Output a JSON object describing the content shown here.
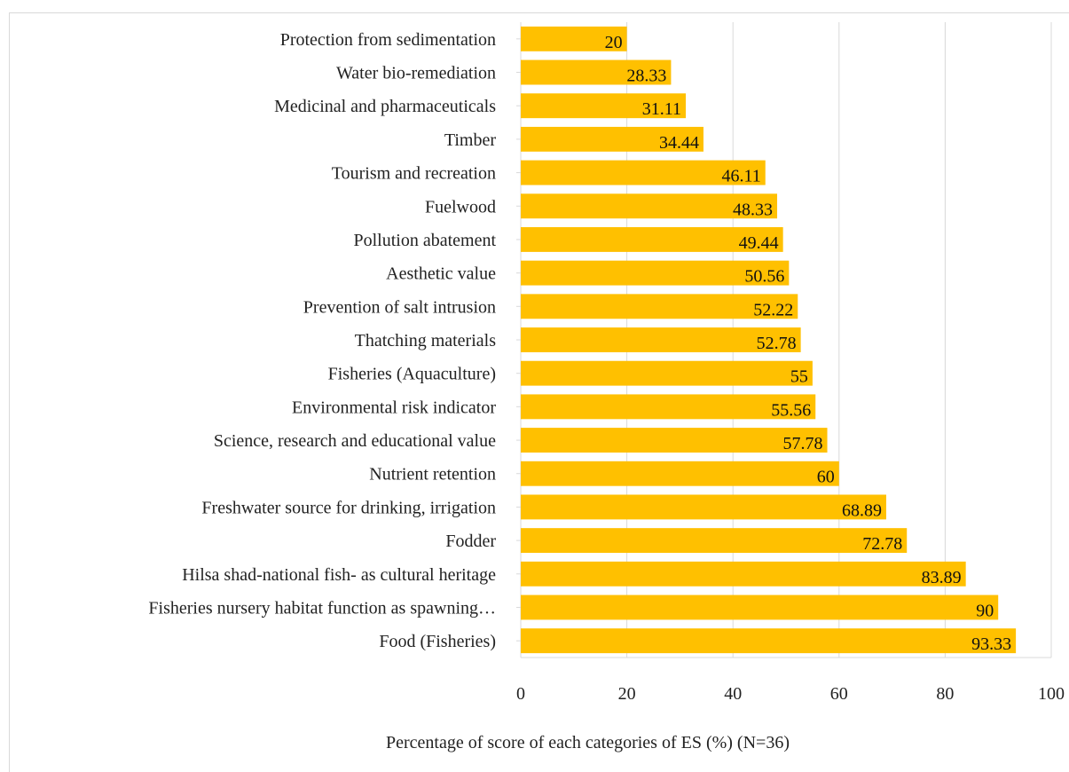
{
  "chart_data": {
    "type": "bar",
    "orientation": "horizontal",
    "title": "",
    "xlabel": "Percentage of score of each categories of ES (%) (N=36)",
    "ylabel": "",
    "xlim": [
      0,
      100
    ],
    "xticks": [
      "0",
      "20",
      "40",
      "60",
      "80",
      "100"
    ],
    "grid": "vertical",
    "legend": "none",
    "bar_color": "#FFC000",
    "categories": [
      "Protection from sedimentation",
      "Water bio-remediation",
      "Medicinal and pharmaceuticals",
      "Timber",
      "Tourism and recreation",
      "Fuelwood",
      "Pollution abatement",
      "Aesthetic value",
      "Prevention of salt intrusion",
      "Thatching materials",
      "Fisheries (Aquaculture)",
      "Environmental risk indicator",
      "Science, research and educational value",
      "Nutrient retention",
      "Freshwater source for drinking, irrigation",
      "Fodder",
      "Hilsa shad-national fish- as cultural heritage",
      "Fisheries nursery habitat function as spawning…",
      "Food (Fisheries)"
    ],
    "values": [
      20,
      28.33,
      31.11,
      34.44,
      46.11,
      48.33,
      49.44,
      50.56,
      52.22,
      52.78,
      55,
      55.56,
      57.78,
      60,
      68.89,
      72.78,
      83.89,
      90,
      93.33
    ],
    "data_labels": [
      "20",
      "28.33",
      "31.11",
      "34.44",
      "46.11",
      "48.33",
      "49.44",
      "50.56",
      "52.22",
      "52.78",
      "55",
      "55.56",
      "57.78",
      "60",
      "68.89",
      "72.78",
      "83.89",
      "90",
      "93.33"
    ]
  }
}
